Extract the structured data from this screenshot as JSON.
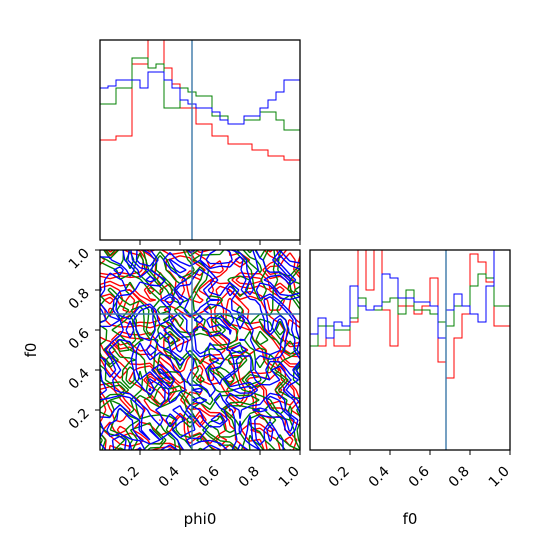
{
  "chart_data": {
    "type": "corner",
    "parameters": [
      "phi0",
      "f0"
    ],
    "truths": {
      "phi0": 0.46,
      "f0": 0.68
    },
    "truth_color": "#3b78a8",
    "axis_range": {
      "phi0": [
        0,
        1
      ],
      "f0": [
        0,
        1
      ]
    },
    "tick_labels": [
      "0.2",
      "0.4",
      "0.6",
      "0.8",
      "1.0"
    ],
    "series": [
      {
        "color": "#ff0000",
        "hist_phi0": [
          0.5,
          0.5,
          0.52,
          0.52,
          0.88,
          0.88,
          1.06,
          1.06,
          0.86,
          0.78,
          0.66,
          0.66,
          0.58,
          0.58,
          0.52,
          0.52,
          0.48,
          0.48,
          0.48,
          0.45,
          0.45,
          0.42,
          0.42,
          0.4,
          0.4
        ],
        "hist_f0": [
          0.52,
          0.52,
          0.62,
          0.52,
          0.52,
          0.64,
          1.02,
          0.8,
          1.1,
          0.7,
          0.52,
          0.72,
          0.72,
          0.68,
          0.72,
          0.86,
          0.44,
          0.36,
          0.56,
          0.68,
          0.98,
          0.94,
          0.84,
          0.62,
          0.62
        ]
      },
      {
        "color": "#008000",
        "hist_phi0": [
          0.68,
          0.68,
          0.76,
          0.76,
          0.91,
          0.91,
          0.86,
          0.88,
          0.66,
          0.66,
          0.76,
          0.74,
          0.72,
          0.72,
          0.62,
          0.62,
          0.58,
          0.58,
          0.6,
          0.6,
          0.64,
          0.64,
          0.6,
          0.55,
          0.55
        ],
        "hist_f0": [
          0.52,
          0.62,
          0.62,
          0.6,
          0.6,
          0.66,
          0.76,
          0.7,
          0.7,
          0.74,
          0.76,
          0.68,
          0.8,
          0.7,
          0.7,
          0.68,
          0.64,
          0.62,
          0.72,
          0.72,
          0.82,
          0.88,
          0.86,
          0.72,
          0.72
        ]
      },
      {
        "color": "#0000ff",
        "hist_phi0": [
          0.76,
          0.77,
          0.8,
          0.8,
          0.8,
          0.76,
          0.84,
          0.84,
          0.8,
          0.76,
          0.7,
          0.68,
          0.66,
          0.66,
          0.64,
          0.6,
          0.58,
          0.58,
          0.62,
          0.62,
          0.66,
          0.7,
          0.74,
          0.8,
          0.8
        ],
        "hist_f0": [
          0.58,
          0.66,
          0.56,
          0.64,
          0.62,
          0.82,
          0.72,
          0.7,
          0.72,
          0.88,
          0.86,
          0.76,
          0.76,
          0.74,
          0.74,
          0.72,
          0.56,
          0.7,
          0.78,
          0.72,
          0.68,
          0.64,
          0.82,
          1.02,
          1.02
        ]
      }
    ]
  },
  "labels": {
    "x_phi0": "phi0",
    "x_f0": "f0",
    "y_f0": "f0"
  }
}
